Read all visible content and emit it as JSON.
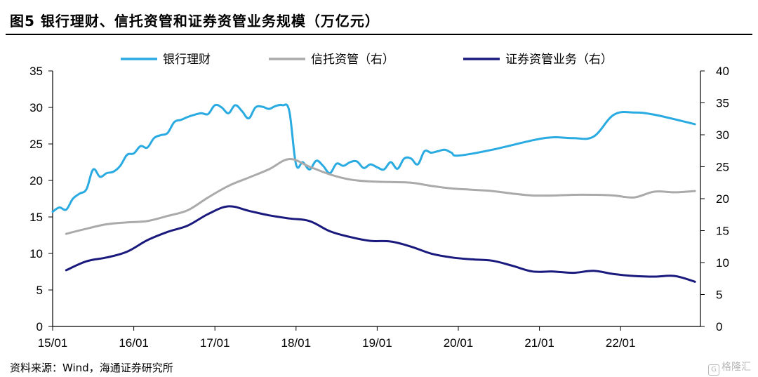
{
  "title": "图5  银行理财、信托资管和证券资管业务规模（万亿元）",
  "source": "资料来源：Wind，海通证券研究所",
  "watermark": "格隆汇",
  "chart_data": {
    "type": "line",
    "x_tick_labels": [
      "15/01",
      "16/01",
      "17/01",
      "18/01",
      "19/01",
      "20/01",
      "21/01",
      "22/01"
    ],
    "left_axis": {
      "ylim": [
        0,
        35
      ],
      "ticks": [
        0,
        5,
        10,
        15,
        20,
        25,
        30,
        35
      ]
    },
    "right_axis": {
      "ylim": [
        0,
        40
      ],
      "ticks": [
        0,
        5,
        10,
        15,
        20,
        25,
        30,
        35,
        40
      ]
    },
    "grid": false,
    "legend_position": "top",
    "series": [
      {
        "name": "银行理财",
        "axis": "left",
        "color": "#29abe2",
        "points": [
          [
            "2015-01",
            15.7
          ],
          [
            "2015-02",
            16.3
          ],
          [
            "2015-03",
            16.0
          ],
          [
            "2015-04",
            17.5
          ],
          [
            "2015-05",
            18.2
          ],
          [
            "2015-06",
            18.8
          ],
          [
            "2015-07",
            21.5
          ],
          [
            "2015-08",
            20.5
          ],
          [
            "2015-09",
            21.0
          ],
          [
            "2015-10",
            21.2
          ],
          [
            "2015-11",
            22.0
          ],
          [
            "2015-12",
            23.5
          ],
          [
            "2016-01",
            23.7
          ],
          [
            "2016-02",
            24.7
          ],
          [
            "2016-03",
            24.5
          ],
          [
            "2016-04",
            25.8
          ],
          [
            "2016-05",
            26.2
          ],
          [
            "2016-06",
            26.5
          ],
          [
            "2016-07",
            28.0
          ],
          [
            "2016-08",
            28.3
          ],
          [
            "2016-09",
            28.7
          ],
          [
            "2016-10",
            29.0
          ],
          [
            "2016-11",
            29.2
          ],
          [
            "2016-12",
            29.1
          ],
          [
            "2017-01",
            30.3
          ],
          [
            "2017-02",
            30.0
          ],
          [
            "2017-03",
            29.2
          ],
          [
            "2017-04",
            30.3
          ],
          [
            "2017-05",
            29.5
          ],
          [
            "2017-06",
            28.5
          ],
          [
            "2017-07",
            30.0
          ],
          [
            "2017-08",
            30.1
          ],
          [
            "2017-09",
            29.8
          ],
          [
            "2017-10",
            30.2
          ],
          [
            "2017-11",
            30.3
          ],
          [
            "2017-12",
            29.5
          ],
          [
            "2018-01",
            22.2
          ],
          [
            "2018-02",
            22.5
          ],
          [
            "2018-03",
            21.5
          ],
          [
            "2018-04",
            22.7
          ],
          [
            "2018-05",
            22.0
          ],
          [
            "2018-06",
            21.0
          ],
          [
            "2018-07",
            22.3
          ],
          [
            "2018-08",
            22.0
          ],
          [
            "2018-09",
            22.5
          ],
          [
            "2018-10",
            22.6
          ],
          [
            "2018-11",
            21.7
          ],
          [
            "2018-12",
            22.2
          ],
          [
            "2019-01",
            21.8
          ],
          [
            "2019-02",
            21.5
          ],
          [
            "2019-03",
            22.5
          ],
          [
            "2019-04",
            21.6
          ],
          [
            "2019-05",
            23.0
          ],
          [
            "2019-06",
            23.0
          ],
          [
            "2019-07",
            22.2
          ],
          [
            "2019-08",
            24.0
          ],
          [
            "2019-09",
            23.8
          ],
          [
            "2019-10",
            24.0
          ],
          [
            "2019-11",
            24.2
          ],
          [
            "2019-12",
            23.8
          ],
          [
            "2020-01",
            23.4
          ],
          [
            "2020-06",
            24.2
          ],
          [
            "2020-12",
            25.5
          ],
          [
            "2021-03",
            25.9
          ],
          [
            "2021-06",
            25.8
          ],
          [
            "2021-09",
            26.0
          ],
          [
            "2021-12",
            29.0
          ],
          [
            "2022-03",
            29.3
          ],
          [
            "2022-06",
            29.0
          ],
          [
            "2022-12",
            27.7
          ]
        ]
      },
      {
        "name": "信托资管（右）",
        "axis": "right",
        "color": "#aaaaaa",
        "points": [
          [
            "2015-03",
            14.5
          ],
          [
            "2015-06",
            15.3
          ],
          [
            "2015-09",
            16.0
          ],
          [
            "2015-12",
            16.3
          ],
          [
            "2016-03",
            16.5
          ],
          [
            "2016-06",
            17.3
          ],
          [
            "2016-09",
            18.2
          ],
          [
            "2016-12",
            20.2
          ],
          [
            "2017-03",
            22.0
          ],
          [
            "2017-06",
            23.3
          ],
          [
            "2017-09",
            24.6
          ],
          [
            "2017-12",
            26.2
          ],
          [
            "2018-03",
            25.0
          ],
          [
            "2018-06",
            23.8
          ],
          [
            "2018-09",
            23.0
          ],
          [
            "2018-12",
            22.7
          ],
          [
            "2019-03",
            22.6
          ],
          [
            "2019-06",
            22.5
          ],
          [
            "2019-09",
            22.0
          ],
          [
            "2019-12",
            21.6
          ],
          [
            "2020-03",
            21.4
          ],
          [
            "2020-06",
            21.2
          ],
          [
            "2020-09",
            20.8
          ],
          [
            "2020-12",
            20.5
          ],
          [
            "2021-03",
            20.5
          ],
          [
            "2021-06",
            20.6
          ],
          [
            "2021-09",
            20.6
          ],
          [
            "2021-12",
            20.5
          ],
          [
            "2022-03",
            20.2
          ],
          [
            "2022-06",
            21.1
          ],
          [
            "2022-09",
            21.0
          ],
          [
            "2022-12",
            21.2
          ]
        ]
      },
      {
        "name": "证券资管业务（右）",
        "axis": "right",
        "color": "#1a1a7e",
        "points": [
          [
            "2015-03",
            8.8
          ],
          [
            "2015-06",
            10.2
          ],
          [
            "2015-09",
            10.8
          ],
          [
            "2015-12",
            11.7
          ],
          [
            "2016-03",
            13.5
          ],
          [
            "2016-06",
            14.8
          ],
          [
            "2016-09",
            15.8
          ],
          [
            "2016-12",
            17.6
          ],
          [
            "2017-03",
            18.8
          ],
          [
            "2017-06",
            18.1
          ],
          [
            "2017-09",
            17.4
          ],
          [
            "2017-12",
            16.9
          ],
          [
            "2018-03",
            16.5
          ],
          [
            "2018-06",
            14.9
          ],
          [
            "2018-09",
            14.0
          ],
          [
            "2018-12",
            13.4
          ],
          [
            "2019-03",
            13.3
          ],
          [
            "2019-06",
            12.5
          ],
          [
            "2019-09",
            11.4
          ],
          [
            "2019-12",
            10.8
          ],
          [
            "2020-03",
            10.5
          ],
          [
            "2020-06",
            10.3
          ],
          [
            "2020-09",
            9.5
          ],
          [
            "2020-12",
            8.6
          ],
          [
            "2021-03",
            8.6
          ],
          [
            "2021-06",
            8.4
          ],
          [
            "2021-09",
            8.7
          ],
          [
            "2021-12",
            8.2
          ],
          [
            "2022-03",
            7.9
          ],
          [
            "2022-06",
            7.8
          ],
          [
            "2022-09",
            7.9
          ],
          [
            "2022-12",
            7.0
          ]
        ]
      }
    ]
  }
}
